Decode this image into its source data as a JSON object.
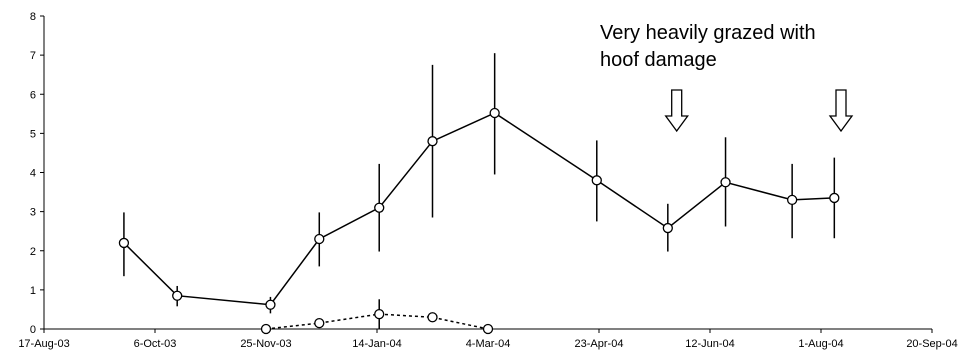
{
  "chart_data": {
    "type": "line",
    "title": "",
    "xlabel": "",
    "ylabel": "",
    "ylim": [
      0,
      8
    ],
    "yticks": [
      0,
      1,
      2,
      3,
      4,
      5,
      6,
      7,
      8
    ],
    "xlim": [
      "2003-08-17",
      "2004-09-20"
    ],
    "xticks": [
      {
        "date": "2003-08-17",
        "label": "17-Aug-03"
      },
      {
        "date": "2003-10-06",
        "label": "6-Oct-03"
      },
      {
        "date": "2003-11-25",
        "label": "25-Nov-03"
      },
      {
        "date": "2004-01-14",
        "label": "14-Jan-04"
      },
      {
        "date": "2004-03-04",
        "label": "4-Mar-04"
      },
      {
        "date": "2004-04-23",
        "label": "23-Apr-04"
      },
      {
        "date": "2004-06-12",
        "label": "12-Jun-04"
      },
      {
        "date": "2004-08-01",
        "label": "1-Aug-04"
      },
      {
        "date": "2004-09-20",
        "label": "20-Sep-04"
      }
    ],
    "grid": false,
    "legend": false,
    "series": [
      {
        "line_style": "solid",
        "marker": "open-circle",
        "color": "#000000",
        "points": [
          {
            "x": "2003-09-22",
            "y": 2.2,
            "err_low": 1.35,
            "err_high": 2.98
          },
          {
            "x": "2003-10-16",
            "y": 0.85,
            "err_low": 0.58,
            "err_high": 1.1
          },
          {
            "x": "2003-11-27",
            "y": 0.62,
            "err_low": 0.4,
            "err_high": 0.82
          },
          {
            "x": "2003-12-19",
            "y": 2.3,
            "err_low": 1.6,
            "err_high": 2.98
          },
          {
            "x": "2004-01-15",
            "y": 3.1,
            "err_low": 1.98,
            "err_high": 4.22
          },
          {
            "x": "2004-02-08",
            "y": 4.8,
            "err_low": 2.85,
            "err_high": 6.75
          },
          {
            "x": "2004-03-07",
            "y": 5.52,
            "err_low": 3.95,
            "err_high": 7.05
          },
          {
            "x": "2004-04-22",
            "y": 3.8,
            "err_low": 2.75,
            "err_high": 4.82
          },
          {
            "x": "2004-05-24",
            "y": 2.58,
            "err_low": 1.98,
            "err_high": 3.2
          },
          {
            "x": "2004-06-19",
            "y": 3.75,
            "err_low": 2.62,
            "err_high": 4.9
          },
          {
            "x": "2004-07-19",
            "y": 3.3,
            "err_low": 2.32,
            "err_high": 4.22
          },
          {
            "x": "2004-08-07",
            "y": 3.35,
            "err_low": 2.32,
            "err_high": 4.38
          }
        ]
      },
      {
        "line_style": "dotted",
        "marker": "open-circle",
        "color": "#000000",
        "points": [
          {
            "x": "2003-11-25",
            "y": 0.0,
            "err_low": 0.0,
            "err_high": 0.0
          },
          {
            "x": "2003-12-19",
            "y": 0.15,
            "err_low": 0.08,
            "err_high": 0.22
          },
          {
            "x": "2004-01-15",
            "y": 0.38,
            "err_low": 0.0,
            "err_high": 0.76
          },
          {
            "x": "2004-02-08",
            "y": 0.3,
            "err_low": 0.2,
            "err_high": 0.42
          },
          {
            "x": "2004-03-04",
            "y": 0.0,
            "err_low": 0.0,
            "err_high": 0.0
          }
        ]
      }
    ],
    "annotations": [
      {
        "text": "Very heavily grazed with\nhoof damage"
      }
    ],
    "arrows": [
      {
        "x": "2004-05-28",
        "direction": "down"
      },
      {
        "x": "2004-08-10",
        "direction": "down"
      }
    ]
  }
}
